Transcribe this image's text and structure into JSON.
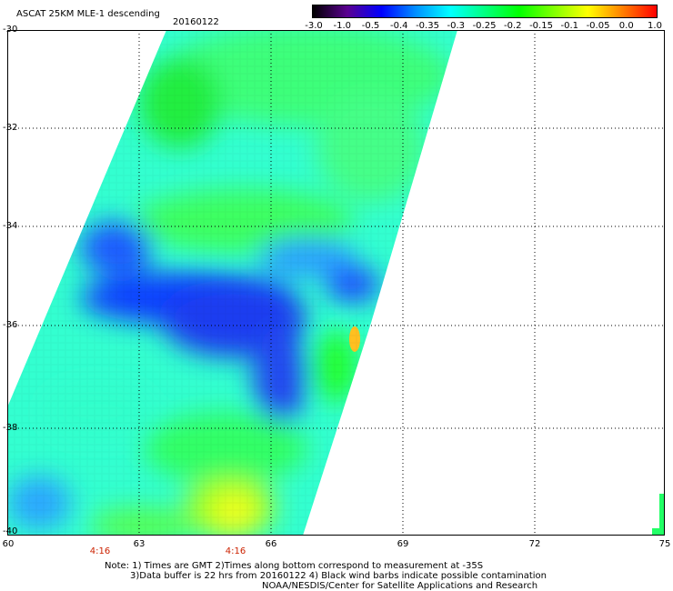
{
  "header": {
    "title": "ASCAT 25KM MLE-1 descending",
    "date": "20160122"
  },
  "colorbar": {
    "labels": [
      "-3.0",
      "-1.0",
      "-0.5",
      "-0.4",
      "-0.35",
      "-0.3",
      "-0.25",
      "-0.2",
      "-0.15",
      "-0.1",
      "-0.05",
      "0.0",
      "1.0"
    ],
    "colors": [
      "#000000",
      "#5a0090",
      "#0000ff",
      "#0090ff",
      "#00ffff",
      "#00ff80",
      "#00ff00",
      "#80ff00",
      "#ffff00",
      "#ff8000",
      "#ff0000"
    ]
  },
  "map": {
    "lat_labels": [
      "-30",
      "-32",
      "-34",
      "-36",
      "-38",
      "-40"
    ],
    "lon_labels": [
      "60",
      "63",
      "66",
      "69",
      "72",
      "75"
    ],
    "time_labels": [
      "4:16",
      "4:16"
    ]
  },
  "notes": {
    "line1": "Note: 1) Times are GMT 2)Times along bottom correspond to measurement at -35S",
    "line2": "3)Data buffer is 22 hrs from 20160122 4) Black wind barbs indicate possible contamination",
    "line3": "NOAA/NESDIS/Center for Satellite Applications and Research"
  }
}
